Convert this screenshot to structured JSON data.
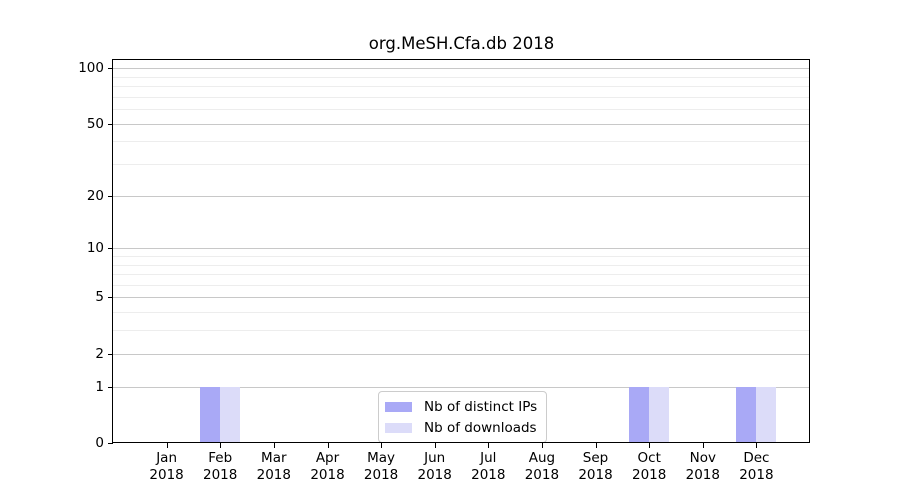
{
  "chart_data": {
    "type": "bar",
    "title": "org.MeSH.Cfa.db 2018",
    "year_label": "2018",
    "months": [
      "Jan",
      "Feb",
      "Mar",
      "Apr",
      "May",
      "Jun",
      "Jul",
      "Aug",
      "Sep",
      "Oct",
      "Nov",
      "Dec"
    ],
    "categories": [
      "Jan 2018",
      "Feb 2018",
      "Mar 2018",
      "Apr 2018",
      "May 2018",
      "Jun 2018",
      "Jul 2018",
      "Aug 2018",
      "Sep 2018",
      "Oct 2018",
      "Nov 2018",
      "Dec 2018"
    ],
    "series": [
      {
        "name": "Nb of distinct IPs",
        "color": "#a9a9f6",
        "values": [
          0,
          1,
          0,
          0,
          0,
          0,
          0,
          0,
          0,
          1,
          0,
          1
        ]
      },
      {
        "name": "Nb of downloads",
        "color": "#dcdcf9",
        "values": [
          0,
          1,
          0,
          0,
          0,
          0,
          0,
          0,
          0,
          1,
          0,
          1
        ]
      }
    ],
    "xlabel": "",
    "ylabel": "",
    "yscale": "log1p",
    "ylim": [
      0,
      112
    ],
    "y_major_ticks": [
      0,
      1,
      2,
      5,
      10,
      20,
      50,
      100
    ],
    "y_minor_gridlines": [
      3,
      4,
      6,
      7,
      8,
      9,
      30,
      40,
      60,
      70,
      80,
      90
    ],
    "grid": true,
    "legend": {
      "position": "lower center",
      "entries": [
        "Nb of distinct IPs",
        "Nb of downloads"
      ]
    }
  }
}
